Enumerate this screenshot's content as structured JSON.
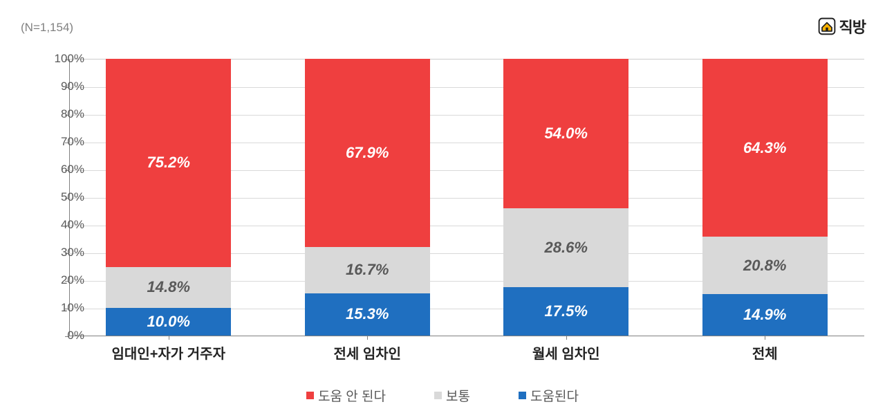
{
  "meta": {
    "n_label": "(N=1,154)"
  },
  "logo": {
    "text": "직방"
  },
  "chart": {
    "type": "stacked-bar-100",
    "background_color": "#ffffff",
    "grid_color": "#d9d9d9",
    "axis_color": "#808080",
    "ylim": [
      0,
      100
    ],
    "ytick_step": 10,
    "y_tick_labels": [
      "0%",
      "10%",
      "20%",
      "30%",
      "40%",
      "50%",
      "60%",
      "70%",
      "80%",
      "90%",
      "100%"
    ],
    "bar_width_ratio": 0.63,
    "data_label_fontsize": 22,
    "data_label_fontstyle": "italic",
    "data_label_fontweight": 700,
    "x_label_fontsize": 20,
    "x_label_fontweight": 700,
    "y_tick_fontsize": 17,
    "categories": [
      "임대인+자가 거주자",
      "전세 임차인",
      "월세 임차인",
      "전체"
    ],
    "series": [
      {
        "key": "helpful",
        "label": "도움된다",
        "color": "#1f6fc0",
        "text_color": "#ffffff"
      },
      {
        "key": "neutral",
        "label": "보통",
        "color": "#d9d9d9",
        "text_color": "#595959"
      },
      {
        "key": "not_helpful",
        "label": "도움 안 된다",
        "color": "#ef3f3f",
        "text_color": "#ffffff"
      }
    ],
    "legend_order": [
      "not_helpful",
      "neutral",
      "helpful"
    ],
    "values": [
      {
        "helpful": 10.0,
        "neutral": 14.8,
        "not_helpful": 75.2
      },
      {
        "helpful": 15.3,
        "neutral": 16.7,
        "not_helpful": 67.9
      },
      {
        "helpful": 17.5,
        "neutral": 28.6,
        "not_helpful": 54.0
      },
      {
        "helpful": 14.9,
        "neutral": 20.8,
        "not_helpful": 64.3
      }
    ],
    "value_labels": [
      {
        "helpful": "10.0%",
        "neutral": "14.8%",
        "not_helpful": "75.2%"
      },
      {
        "helpful": "15.3%",
        "neutral": "16.7%",
        "not_helpful": "67.9%"
      },
      {
        "helpful": "17.5%",
        "neutral": "28.6%",
        "not_helpful": "54.0%"
      },
      {
        "helpful": "14.9%",
        "neutral": "20.8%",
        "not_helpful": "64.3%"
      }
    ]
  }
}
